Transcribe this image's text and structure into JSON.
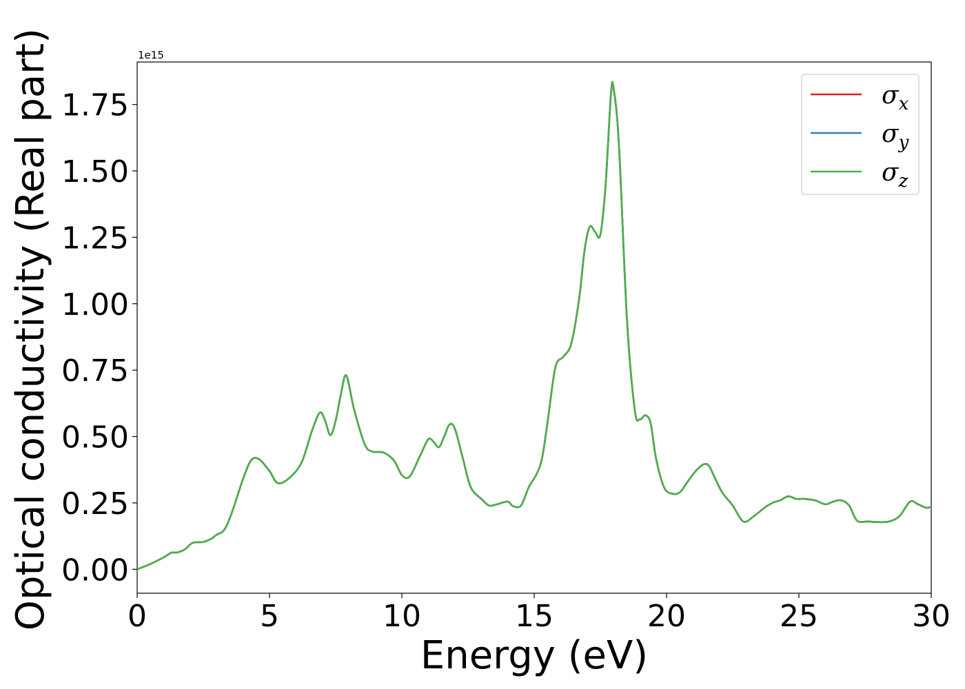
{
  "chart_data": {
    "type": "line",
    "xlabel": "Energy (eV)",
    "ylabel": "Optical conductivity (Real part)",
    "y_offset_text": "1e15",
    "xlim": [
      0,
      30
    ],
    "ylim": [
      -0.09,
      1.91
    ],
    "xticks": [
      0,
      5,
      10,
      15,
      20,
      25,
      30
    ],
    "xtick_labels": [
      "0",
      "5",
      "10",
      "15",
      "20",
      "25",
      "30"
    ],
    "yticks": [
      0,
      0.25,
      0.5,
      0.75,
      1.0,
      1.25,
      1.5,
      1.75
    ],
    "ytick_labels": [
      "0.00",
      "0.25",
      "0.50",
      "0.75",
      "1.00",
      "1.25",
      "1.50",
      "1.75"
    ],
    "legend_position": "top-right",
    "grid": false,
    "x": [
      0,
      0.5,
      1.0,
      1.3,
      1.5,
      1.8,
      2.1,
      2.5,
      2.8,
      3.0,
      3.3,
      3.6,
      4.0,
      4.3,
      4.6,
      5.0,
      5.3,
      5.7,
      6.2,
      6.6,
      6.9,
      7.1,
      7.3,
      7.5,
      7.7,
      7.9,
      8.2,
      8.6,
      8.9,
      9.3,
      9.7,
      10.0,
      10.3,
      10.7,
      11.0,
      11.2,
      11.4,
      11.6,
      11.8,
      12.0,
      12.3,
      12.6,
      13.0,
      13.3,
      13.6,
      14.0,
      14.2,
      14.5,
      14.8,
      15.1,
      15.3,
      15.5,
      15.8,
      16.1,
      16.4,
      16.7,
      16.9,
      17.1,
      17.3,
      17.5,
      17.7,
      17.9,
      18.0,
      18.2,
      18.5,
      18.8,
      19.0,
      19.2,
      19.4,
      19.6,
      19.9,
      20.2,
      20.5,
      20.8,
      21.1,
      21.4,
      21.6,
      21.8,
      22.1,
      22.5,
      22.9,
      23.3,
      23.7,
      24.0,
      24.3,
      24.6,
      24.9,
      25.2,
      25.6,
      26.0,
      26.3,
      26.6,
      26.9,
      27.2,
      27.6,
      28.0,
      28.4,
      28.8,
      29.2,
      29.5,
      29.8,
      30.0
    ],
    "series": [
      {
        "name": "σx",
        "color": "#e31a1c",
        "y": [
          0.0,
          0.02,
          0.045,
          0.063,
          0.063,
          0.075,
          0.1,
          0.103,
          0.115,
          0.13,
          0.15,
          0.22,
          0.34,
          0.41,
          0.415,
          0.37,
          0.325,
          0.34,
          0.4,
          0.52,
          0.59,
          0.56,
          0.505,
          0.56,
          0.66,
          0.73,
          0.6,
          0.47,
          0.443,
          0.44,
          0.41,
          0.355,
          0.35,
          0.43,
          0.49,
          0.48,
          0.46,
          0.5,
          0.545,
          0.53,
          0.42,
          0.31,
          0.265,
          0.24,
          0.245,
          0.255,
          0.238,
          0.24,
          0.31,
          0.36,
          0.42,
          0.55,
          0.76,
          0.8,
          0.85,
          1.02,
          1.2,
          1.29,
          1.27,
          1.26,
          1.45,
          1.79,
          1.81,
          1.6,
          0.95,
          0.6,
          0.565,
          0.58,
          0.55,
          0.42,
          0.31,
          0.285,
          0.29,
          0.33,
          0.37,
          0.395,
          0.39,
          0.35,
          0.29,
          0.24,
          0.18,
          0.2,
          0.232,
          0.25,
          0.26,
          0.275,
          0.265,
          0.265,
          0.26,
          0.245,
          0.255,
          0.26,
          0.24,
          0.183,
          0.18,
          0.178,
          0.18,
          0.2,
          0.255,
          0.245,
          0.232,
          0.235
        ]
      },
      {
        "name": "σy",
        "color": "#377eb8",
        "y": [
          0.0,
          0.02,
          0.045,
          0.063,
          0.063,
          0.075,
          0.1,
          0.103,
          0.115,
          0.13,
          0.15,
          0.22,
          0.34,
          0.41,
          0.415,
          0.37,
          0.325,
          0.34,
          0.4,
          0.52,
          0.59,
          0.56,
          0.505,
          0.56,
          0.66,
          0.73,
          0.6,
          0.47,
          0.443,
          0.44,
          0.41,
          0.355,
          0.35,
          0.43,
          0.49,
          0.48,
          0.46,
          0.5,
          0.545,
          0.53,
          0.42,
          0.31,
          0.265,
          0.24,
          0.245,
          0.255,
          0.238,
          0.24,
          0.31,
          0.36,
          0.42,
          0.55,
          0.76,
          0.8,
          0.85,
          1.02,
          1.2,
          1.29,
          1.27,
          1.26,
          1.45,
          1.79,
          1.81,
          1.6,
          0.95,
          0.6,
          0.565,
          0.58,
          0.55,
          0.42,
          0.31,
          0.285,
          0.29,
          0.33,
          0.37,
          0.395,
          0.39,
          0.35,
          0.29,
          0.24,
          0.18,
          0.2,
          0.232,
          0.25,
          0.26,
          0.275,
          0.265,
          0.265,
          0.26,
          0.245,
          0.255,
          0.26,
          0.24,
          0.183,
          0.18,
          0.178,
          0.18,
          0.2,
          0.255,
          0.245,
          0.232,
          0.235
        ]
      },
      {
        "name": "σz",
        "color": "#4daf4a",
        "y": [
          0.0,
          0.02,
          0.045,
          0.063,
          0.063,
          0.075,
          0.1,
          0.103,
          0.115,
          0.13,
          0.15,
          0.22,
          0.34,
          0.41,
          0.415,
          0.37,
          0.325,
          0.34,
          0.4,
          0.52,
          0.59,
          0.56,
          0.505,
          0.56,
          0.66,
          0.73,
          0.6,
          0.47,
          0.443,
          0.44,
          0.41,
          0.355,
          0.35,
          0.43,
          0.49,
          0.48,
          0.46,
          0.5,
          0.545,
          0.53,
          0.42,
          0.31,
          0.265,
          0.24,
          0.245,
          0.255,
          0.238,
          0.24,
          0.31,
          0.36,
          0.42,
          0.55,
          0.76,
          0.8,
          0.85,
          1.02,
          1.2,
          1.29,
          1.27,
          1.26,
          1.45,
          1.79,
          1.81,
          1.6,
          0.95,
          0.6,
          0.565,
          0.58,
          0.55,
          0.42,
          0.31,
          0.285,
          0.29,
          0.33,
          0.37,
          0.395,
          0.39,
          0.35,
          0.29,
          0.24,
          0.18,
          0.2,
          0.232,
          0.25,
          0.26,
          0.275,
          0.265,
          0.265,
          0.26,
          0.245,
          0.255,
          0.26,
          0.24,
          0.183,
          0.18,
          0.178,
          0.18,
          0.2,
          0.255,
          0.245,
          0.232,
          0.235
        ]
      }
    ],
    "legend": [
      {
        "symbol": "σ",
        "sub": "x",
        "color": "#e31a1c"
      },
      {
        "symbol": "σ",
        "sub": "y",
        "color": "#377eb8"
      },
      {
        "symbol": "σ",
        "sub": "z",
        "color": "#4daf4a"
      }
    ]
  }
}
